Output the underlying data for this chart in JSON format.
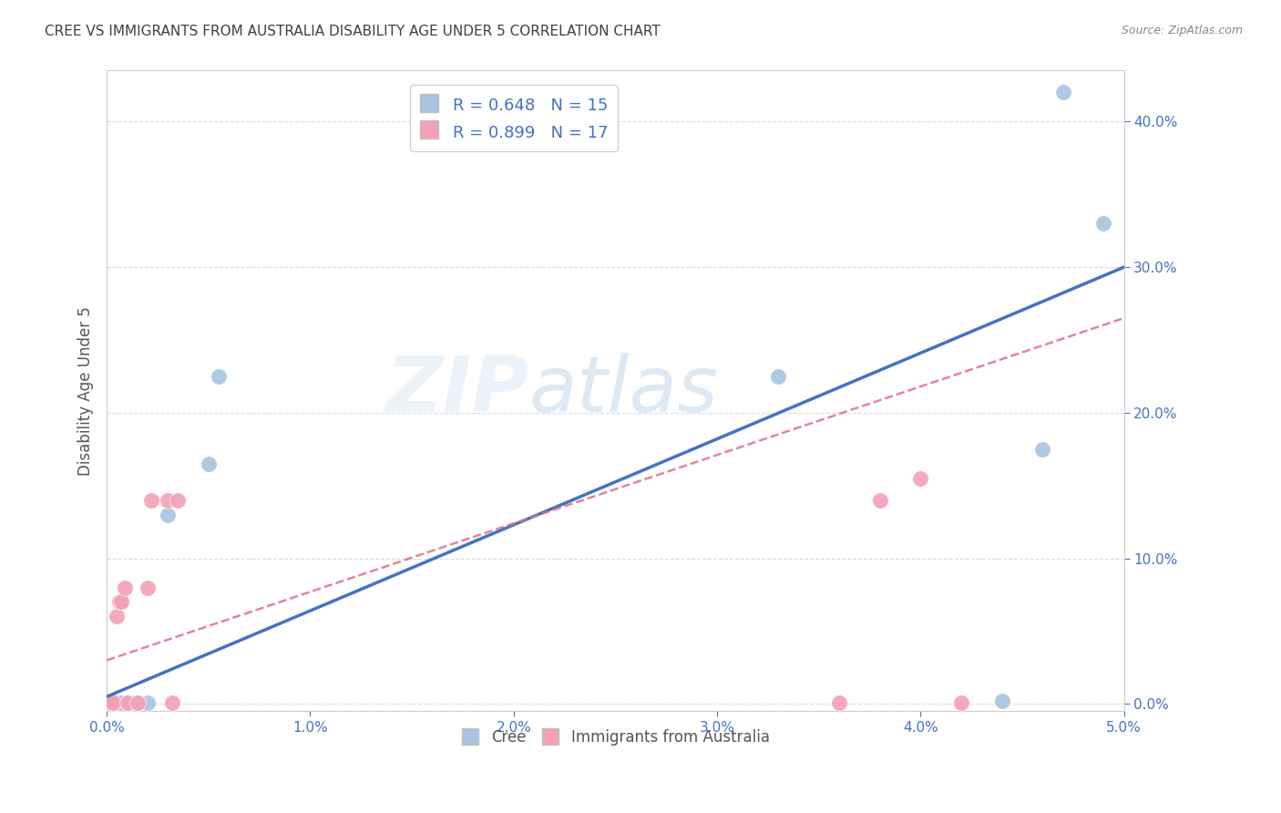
{
  "title": "CREE VS IMMIGRANTS FROM AUSTRALIA DISABILITY AGE UNDER 5 CORRELATION CHART",
  "source": "Source: ZipAtlas.com",
  "ylabel": "Disability Age Under 5",
  "cree_R": 0.648,
  "cree_N": 15,
  "aus_R": 0.899,
  "aus_N": 17,
  "cree_color": "#a8c4e0",
  "aus_color": "#f4a0b5",
  "cree_line_color": "#4472c4",
  "aus_line_color": "#e07080",
  "legend_label_cree": "Cree",
  "legend_label_aus": "Immigrants from Australia",
  "watermark_zip": "ZIP",
  "watermark_atlas": "atlas",
  "xlim": [
    0.0,
    0.05
  ],
  "ylim": [
    -0.005,
    0.435
  ],
  "xticks": [
    0.0,
    0.01,
    0.02,
    0.03,
    0.04,
    0.05
  ],
  "yticks": [
    0.0,
    0.1,
    0.2,
    0.3,
    0.4
  ],
  "cree_x": [
    0.0003,
    0.0005,
    0.0007,
    0.001,
    0.0012,
    0.0015,
    0.002,
    0.003,
    0.005,
    0.0055,
    0.033,
    0.044,
    0.046,
    0.047,
    0.049
  ],
  "cree_y": [
    0.002,
    0.001,
    0.001,
    0.001,
    0.001,
    0.001,
    0.001,
    0.13,
    0.165,
    0.225,
    0.225,
    0.002,
    0.175,
    0.42,
    0.33
  ],
  "aus_x": [
    0.0002,
    0.0003,
    0.0005,
    0.0006,
    0.0007,
    0.0009,
    0.001,
    0.0015,
    0.002,
    0.0022,
    0.003,
    0.0032,
    0.0035,
    0.036,
    0.038,
    0.04,
    0.042
  ],
  "aus_y": [
    0.001,
    0.001,
    0.06,
    0.07,
    0.07,
    0.08,
    0.001,
    0.001,
    0.08,
    0.14,
    0.14,
    0.001,
    0.14,
    0.001,
    0.14,
    0.155,
    0.001
  ],
  "background_color": "#ffffff",
  "grid_color": "#d8d8d8",
  "title_color": "#404040",
  "tick_color": "#4472c4",
  "ylabel_color": "#555555"
}
